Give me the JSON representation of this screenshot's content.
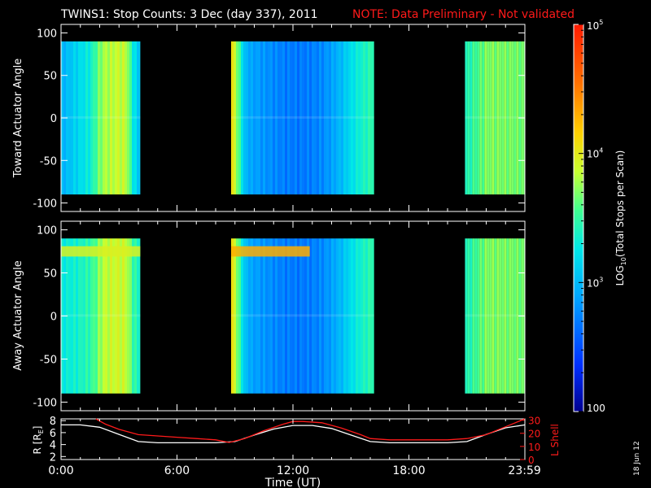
{
  "header": {
    "title": "TWINS1: Stop Counts:  3 Dec (day 337), 2011",
    "note": "NOTE: Data Preliminary - Not validated"
  },
  "colors": {
    "background": "#000000",
    "axes": "#ffffff",
    "note": "#ff1a1a",
    "lshell": "#ff1a1a",
    "radius": "#ffffff"
  },
  "stamp": "18 Jun 12",
  "chart_data": [
    {
      "type": "heatmap",
      "id": "toward",
      "ylabel": "Toward Actuator Angle",
      "xlim": [
        0,
        24
      ],
      "ylim": [
        -110,
        110
      ],
      "data_ylim": [
        -90,
        90
      ],
      "yticks": [
        "100",
        "50",
        "0",
        "-50",
        "-100"
      ],
      "yticks_values": [
        100,
        50,
        0,
        -50,
        -100
      ],
      "color_scale": "log",
      "coverage_hours": [
        [
          -0.1,
          4.1
        ],
        [
          8.8,
          16.2
        ],
        [
          20.9,
          24
        ]
      ],
      "profile_hours": [
        0.0,
        0.3,
        0.6,
        0.9,
        1.2,
        1.5,
        1.8,
        2.1,
        2.4,
        2.7,
        3.0,
        3.3,
        3.6,
        3.9,
        8.8,
        9.1,
        9.4,
        9.8,
        10.5,
        11.5,
        12.5,
        13.5,
        14.0,
        14.5,
        15.0,
        15.5,
        16.0,
        20.9,
        21.5,
        22.0,
        22.5,
        23.0,
        23.5,
        24.0
      ],
      "profile_counts": [
        900,
        1000,
        1300,
        1600,
        2000,
        2500,
        4500,
        7000,
        8000,
        8500,
        9000,
        8000,
        2500,
        1200,
        9000,
        3500,
        900,
        700,
        650,
        600,
        600,
        650,
        800,
        1000,
        1500,
        2000,
        2500,
        3000,
        4500,
        6000,
        5500,
        5000,
        4500,
        4000
      ]
    },
    {
      "type": "heatmap",
      "id": "away",
      "ylabel": "Away Actuator Angle",
      "xlim": [
        0,
        24
      ],
      "ylim": [
        -110,
        110
      ],
      "data_ylim": [
        -90,
        90
      ],
      "yticks": [
        "100",
        "50",
        "0",
        "-50",
        "-100"
      ],
      "yticks_values": [
        100,
        50,
        0,
        -50,
        -100
      ],
      "color_scale": "log",
      "coverage_hours": [
        [
          -0.1,
          4.1
        ],
        [
          8.8,
          16.2
        ],
        [
          20.9,
          24
        ]
      ],
      "profile_hours": [
        0.0,
        0.3,
        0.6,
        0.9,
        1.2,
        1.5,
        1.8,
        2.1,
        2.4,
        2.7,
        3.0,
        3.3,
        3.6,
        3.9,
        8.8,
        9.1,
        9.4,
        9.8,
        10.5,
        11.5,
        12.5,
        13.5,
        14.0,
        14.5,
        15.0,
        15.5,
        16.0,
        20.9,
        21.5,
        22.0,
        22.5,
        23.0,
        23.5,
        24.0
      ],
      "profile_counts": [
        1800,
        2000,
        2200,
        2500,
        3000,
        3500,
        5000,
        8000,
        9000,
        9500,
        9500,
        8500,
        4000,
        2500,
        9000,
        3500,
        1000,
        700,
        650,
        600,
        600,
        650,
        800,
        1000,
        1500,
        2000,
        2500,
        3000,
        4500,
        6000,
        5500,
        5000,
        4500,
        4000
      ],
      "band_angle": 75,
      "band_counts": [
        9000,
        20000,
        9000
      ]
    },
    {
      "type": "line",
      "id": "orbit",
      "ylabel": "R [R",
      "ylabel_sub": "E",
      "ylabel_close": "]",
      "ylabel_right": "L Shell",
      "xlabel": "Time (UT)",
      "xlim": [
        0,
        24
      ],
      "ylim": [
        1.5,
        8.3
      ],
      "y2lim": [
        0,
        31
      ],
      "yticks": [
        "8",
        "6",
        "4",
        "2"
      ],
      "yticks_values": [
        8,
        6,
        4,
        2
      ],
      "y2ticks": [
        "30",
        "20",
        "10",
        "0"
      ],
      "y2ticks_values": [
        30,
        20,
        10,
        0
      ],
      "xticks": [
        "0:00",
        "6:00",
        "12:00",
        "18:00",
        "23:59"
      ],
      "xticks_values": [
        0,
        6,
        12,
        18,
        23.983
      ],
      "series": [
        {
          "role": "radius",
          "axis": "left",
          "x": [
            0,
            1,
            2,
            3,
            4,
            5,
            6,
            7,
            8,
            9,
            10,
            11,
            12,
            13,
            14,
            15,
            16,
            17,
            18,
            19,
            20,
            21,
            22,
            23,
            24
          ],
          "y": [
            7.3,
            7.3,
            6.9,
            5.7,
            4.5,
            4.3,
            4.3,
            4.3,
            4.3,
            4.5,
            5.6,
            6.6,
            7.2,
            7.2,
            6.7,
            5.6,
            4.5,
            4.3,
            4.3,
            4.3,
            4.3,
            4.5,
            5.7,
            6.8,
            7.3
          ]
        },
        {
          "role": "lshell",
          "axis": "right",
          "x": [
            1.8,
            2.3,
            3,
            4,
            5,
            6,
            7,
            8,
            8.7,
            9.5,
            10.5,
            11.5,
            12,
            12.5,
            13.5,
            14.5,
            15.5,
            16,
            17,
            18,
            19,
            20,
            21,
            22,
            23,
            24
          ],
          "y": [
            31,
            27,
            23,
            19,
            18,
            17,
            16,
            15,
            13,
            16,
            22,
            27,
            29,
            29,
            28,
            24,
            19,
            16,
            15,
            15,
            15,
            15,
            16,
            19,
            25,
            33
          ]
        }
      ]
    },
    {
      "type": "colorbar",
      "id": "colorbar",
      "label_prefix": "LOG",
      "label_sub": "10",
      "label_suffix": "(Total Stops per Scan)",
      "scale": "log",
      "range": [
        100,
        100000
      ],
      "ticks": [
        {
          "base": "10",
          "exp": "5",
          "value": 100000
        },
        {
          "base": "10",
          "exp": "4",
          "value": 10000
        },
        {
          "base": "10",
          "exp": "3",
          "value": 1000
        },
        {
          "base": "100",
          "exp": "",
          "value": 100
        }
      ]
    }
  ]
}
